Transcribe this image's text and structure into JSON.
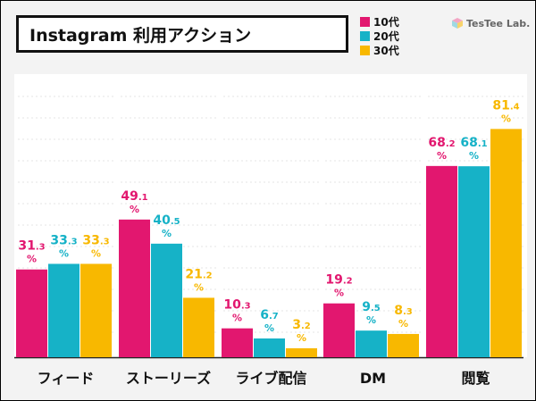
{
  "title": "Instagram 利用アクション",
  "brand": "TesTee Lab.",
  "colors": {
    "10代": "#e2176f",
    "20代": "#16b2c7",
    "30代": "#f8b800"
  },
  "chart_data": {
    "type": "bar",
    "title": "Instagram 利用アクション",
    "categories": [
      "フィード",
      "ストーリーズ",
      "ライブ配信",
      "DM",
      "閲覧"
    ],
    "series": [
      {
        "name": "10代",
        "color": "#e2176f",
        "values": [
          31.3,
          49.1,
          10.3,
          19.2,
          68.2
        ]
      },
      {
        "name": "20代",
        "color": "#16b2c7",
        "values": [
          33.3,
          40.5,
          6.7,
          9.5,
          68.1
        ]
      },
      {
        "name": "30代",
        "color": "#f8b800",
        "values": [
          33.3,
          21.2,
          3.2,
          8.3,
          81.4
        ]
      }
    ],
    "unit": "%",
    "ylim": [
      0,
      100
    ],
    "legend": "top-right",
    "grid": false
  }
}
